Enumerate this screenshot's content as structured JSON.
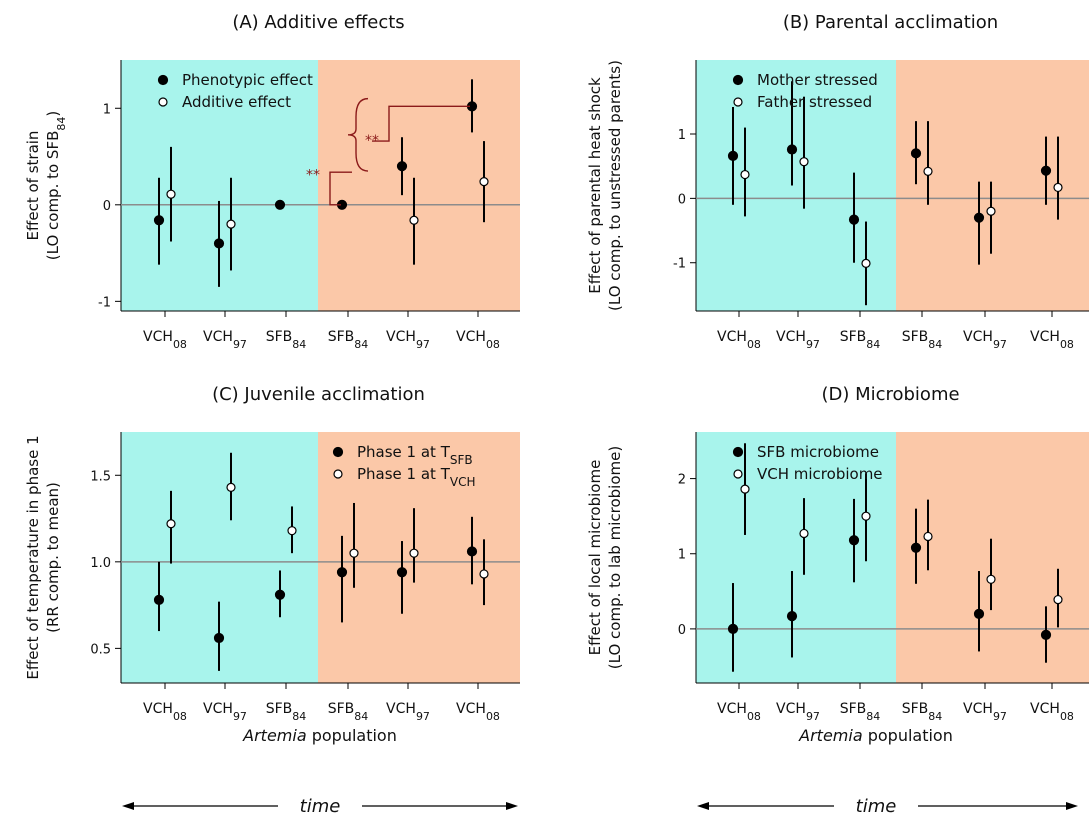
{
  "common": {
    "xlabel_italic": "Artemia",
    "xlabel_rest": " population",
    "time_label": "time",
    "colors": {
      "left_bg": "#a8f4ec",
      "right_bg": "#fbc8a8",
      "zero_line": "#8c8c8c",
      "sig": "#8b1a1a"
    }
  },
  "chart_data": [
    {
      "id": "A",
      "type": "scatter",
      "title": "(A) Additive effects",
      "ylabel": [
        "Effect of strain",
        "(LO comp. to SFB",
        "84",
        ")"
      ],
      "ylim": [
        -1.1,
        1.5
      ],
      "yticks": [
        "-1",
        "0",
        "1"
      ],
      "ytick_values": [
        -1,
        0,
        1
      ],
      "categories": [
        {
          "base": "VCH",
          "sub": "08"
        },
        {
          "base": "VCH",
          "sub": "97"
        },
        {
          "base": "SFB",
          "sub": "84"
        },
        {
          "base": "SFB",
          "sub": "84"
        },
        {
          "base": "VCH",
          "sub": "97"
        },
        {
          "base": "VCH",
          "sub": "08"
        }
      ],
      "reference_line": 0,
      "series": [
        {
          "name": "Phenotypic effect",
          "name_base": "Phenotypic effect",
          "filled": true,
          "values": [
            -0.16,
            -0.4,
            0.0,
            0.0,
            0.4,
            1.02
          ],
          "lower": [
            -0.62,
            -0.85,
            null,
            null,
            0.1,
            0.75
          ],
          "upper": [
            0.28,
            0.04,
            null,
            null,
            0.7,
            1.3
          ]
        },
        {
          "name": "Additive effect",
          "name_base": "Additive effect",
          "filled": false,
          "values": [
            0.11,
            -0.2,
            null,
            null,
            -0.16,
            0.24
          ],
          "lower": [
            -0.38,
            -0.68,
            null,
            null,
            -0.62,
            -0.18
          ],
          "upper": [
            0.6,
            0.28,
            null,
            null,
            0.28,
            0.66
          ]
        }
      ],
      "significance": [
        "**",
        "**"
      ]
    },
    {
      "id": "B",
      "type": "scatter",
      "title": "(B) Parental acclimation",
      "ylabel": [
        "Effect of parental heat shock",
        "(LO comp. to unstressed parents)"
      ],
      "ylim": [
        -1.75,
        2.15
      ],
      "yticks": [
        "-1",
        "0",
        "1"
      ],
      "ytick_values": [
        -1,
        0,
        1
      ],
      "categories": [
        {
          "base": "VCH",
          "sub": "08"
        },
        {
          "base": "VCH",
          "sub": "97"
        },
        {
          "base": "SFB",
          "sub": "84"
        },
        {
          "base": "SFB",
          "sub": "84"
        },
        {
          "base": "VCH",
          "sub": "97"
        },
        {
          "base": "VCH",
          "sub": "08"
        }
      ],
      "reference_line": 0,
      "series": [
        {
          "name": "Mother stressed",
          "name_base": "Mother stressed",
          "filled": true,
          "values": [
            0.66,
            0.76,
            -0.33,
            0.7,
            -0.3,
            0.43
          ],
          "lower": [
            -0.1,
            0.2,
            -1.0,
            0.22,
            -1.03,
            -0.1
          ],
          "upper": [
            1.42,
            1.82,
            0.4,
            1.2,
            0.26,
            0.96
          ]
        },
        {
          "name": "Father stressed",
          "name_base": "Father stressed",
          "filled": false,
          "values": [
            0.37,
            0.57,
            -1.01,
            0.42,
            -0.2,
            0.17
          ],
          "lower": [
            -0.28,
            -0.16,
            -1.66,
            -0.1,
            -0.86,
            -0.33
          ],
          "upper": [
            1.1,
            1.58,
            -0.36,
            1.2,
            0.26,
            0.96
          ]
        }
      ]
    },
    {
      "id": "C",
      "type": "scatter",
      "title": "(C) Juvenile acclimation",
      "ylabel": [
        "Effect of temperature in phase 1",
        "(RR comp. to mean)"
      ],
      "ylim": [
        0.3,
        1.75
      ],
      "yticks": [
        "0.5",
        "1.0",
        "1.5"
      ],
      "ytick_values": [
        0.5,
        1.0,
        1.5
      ],
      "categories": [
        {
          "base": "VCH",
          "sub": "08"
        },
        {
          "base": "VCH",
          "sub": "97"
        },
        {
          "base": "SFB",
          "sub": "84"
        },
        {
          "base": "SFB",
          "sub": "84"
        },
        {
          "base": "VCH",
          "sub": "97"
        },
        {
          "base": "VCH",
          "sub": "08"
        }
      ],
      "reference_line": 1.0,
      "series": [
        {
          "name": "Phase 1 at TSFB",
          "name_base": "Phase 1 at T",
          "name_sub": "SFB",
          "filled": true,
          "values": [
            0.78,
            0.56,
            0.81,
            0.94,
            0.94,
            1.06
          ],
          "lower": [
            0.6,
            0.37,
            0.68,
            0.65,
            0.7,
            0.87
          ],
          "upper": [
            1.0,
            0.77,
            0.95,
            1.15,
            1.12,
            1.26
          ]
        },
        {
          "name": "Phase 1 at TVCH",
          "name_base": "Phase 1 at T",
          "name_sub": "VCH",
          "filled": false,
          "values": [
            1.22,
            1.43,
            1.18,
            1.05,
            1.05,
            0.93
          ],
          "lower": [
            0.99,
            1.24,
            1.05,
            0.85,
            0.88,
            0.75
          ],
          "upper": [
            1.41,
            1.63,
            1.32,
            1.34,
            1.31,
            1.13
          ]
        }
      ]
    },
    {
      "id": "D",
      "type": "scatter",
      "title": "(D) Microbiome",
      "ylabel": [
        "Effect of local microbiome",
        "(LO comp. to lab microbiome)"
      ],
      "ylim": [
        -0.72,
        2.62
      ],
      "yticks": [
        "0",
        "1",
        "2"
      ],
      "ytick_values": [
        0,
        1,
        2
      ],
      "categories": [
        {
          "base": "VCH",
          "sub": "08"
        },
        {
          "base": "VCH",
          "sub": "97"
        },
        {
          "base": "SFB",
          "sub": "84"
        },
        {
          "base": "SFB",
          "sub": "84"
        },
        {
          "base": "VCH",
          "sub": "97"
        },
        {
          "base": "VCH",
          "sub": "08"
        }
      ],
      "reference_line": 0,
      "series": [
        {
          "name": "SFB microbiome",
          "name_base": "SFB microbiome",
          "filled": true,
          "values": [
            0.0,
            0.17,
            1.18,
            1.08,
            0.2,
            -0.08
          ],
          "lower": [
            -0.57,
            -0.38,
            0.62,
            0.6,
            -0.3,
            -0.45
          ],
          "upper": [
            0.61,
            0.77,
            1.73,
            1.6,
            0.77,
            0.3
          ]
        },
        {
          "name": "VCH microbiome",
          "name_base": "VCH microbiome",
          "filled": false,
          "values": [
            1.86,
            1.27,
            1.5,
            1.23,
            0.66,
            0.39
          ],
          "lower": [
            1.25,
            0.72,
            0.9,
            0.78,
            0.25,
            0.02
          ],
          "upper": [
            2.47,
            1.74,
            2.07,
            1.72,
            1.2,
            0.8
          ]
        }
      ]
    }
  ]
}
